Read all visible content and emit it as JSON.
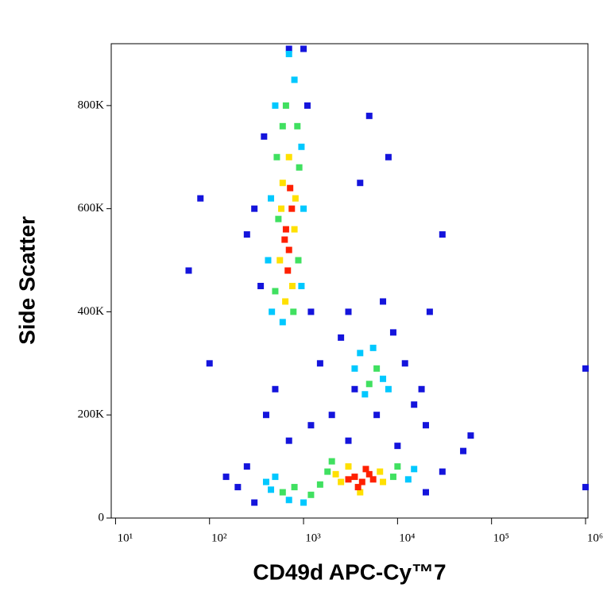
{
  "chart_data": {
    "type": "scatter",
    "x_label": "CD49d APC-Cy™7",
    "y_label": "Side Scatter",
    "xscale": "log",
    "xlim": [
      9,
      1060000
    ],
    "ylim": [
      0,
      920000
    ],
    "xticks": [
      {
        "value": 10,
        "label": "10¹"
      },
      {
        "value": 100,
        "label": "10²"
      },
      {
        "value": 1000,
        "label": "10³"
      },
      {
        "value": 10000,
        "label": "10⁴"
      },
      {
        "value": 100000,
        "label": "10⁵"
      },
      {
        "value": 1000000,
        "label": "10⁶"
      }
    ],
    "yticks": [
      0,
      {
        "value": 200000,
        "label": "200K"
      },
      {
        "value": 400000,
        "label": "400K"
      },
      {
        "value": 600000,
        "label": "600K"
      },
      {
        "value": 800000,
        "label": "800K"
      }
    ],
    "series": [
      {
        "color": "#1414dc",
        "x": [
          380,
          300,
          1100,
          350,
          1200,
          250,
          60,
          80,
          200,
          300,
          250,
          20000,
          30000,
          50000,
          60000,
          150,
          3000,
          2500,
          9000,
          12000,
          15000,
          20000,
          18000,
          6000,
          3500,
          4000,
          1500,
          2000,
          1200,
          5000,
          8000,
          500,
          700,
          100,
          30000,
          700,
          1000,
          3000,
          10000,
          400,
          1000000,
          1000000,
          7000,
          22000
        ],
        "y": [
          740000,
          600000,
          800000,
          450000,
          400000,
          550000,
          480000,
          620000,
          60000,
          30000,
          100000,
          50000,
          90000,
          130000,
          160000,
          80000,
          400000,
          350000,
          360000,
          300000,
          220000,
          180000,
          250000,
          200000,
          250000,
          650000,
          300000,
          200000,
          180000,
          780000,
          700000,
          250000,
          150000,
          300000,
          550000,
          910000,
          910000,
          150000,
          140000,
          200000,
          290000,
          60000,
          420000,
          400000
        ]
      },
      {
        "color": "#00c8ff",
        "x": [
          450,
          950,
          500,
          800,
          420,
          1000,
          600,
          700,
          460,
          950,
          450,
          500,
          13000,
          700,
          15000,
          1000,
          400,
          4000,
          7000,
          5500,
          8000,
          4500,
          3500
        ],
        "y": [
          620000,
          450000,
          800000,
          850000,
          500000,
          600000,
          380000,
          900000,
          400000,
          720000,
          55000,
          80000,
          75000,
          35000,
          95000,
          30000,
          70000,
          320000,
          270000,
          330000,
          250000,
          240000,
          290000
        ]
      },
      {
        "color": "#40e060",
        "x": [
          520,
          880,
          600,
          500,
          900,
          540,
          780,
          650,
          860,
          1500,
          1800,
          9000,
          800,
          1200,
          10000,
          2000,
          600,
          6000,
          5000
        ],
        "y": [
          700000,
          500000,
          760000,
          440000,
          680000,
          580000,
          400000,
          800000,
          760000,
          65000,
          90000,
          80000,
          60000,
          45000,
          100000,
          110000,
          50000,
          290000,
          260000
        ]
      },
      {
        "color": "#ffe000",
        "x": [
          600,
          800,
          560,
          760,
          700,
          640,
          820,
          580,
          2500,
          6500,
          3000,
          4000,
          7000,
          2200
        ],
        "y": [
          650000,
          560000,
          500000,
          450000,
          700000,
          420000,
          620000,
          600000,
          70000,
          90000,
          100000,
          50000,
          70000,
          85000
        ]
      },
      {
        "color": "#ff2000",
        "x": [
          650,
          700,
          750,
          680,
          720,
          630,
          3500,
          4200,
          5000,
          3800,
          4600,
          3000,
          5500
        ],
        "y": [
          560000,
          520000,
          600000,
          480000,
          640000,
          540000,
          80000,
          70000,
          85000,
          60000,
          95000,
          75000,
          75000
        ]
      }
    ]
  }
}
